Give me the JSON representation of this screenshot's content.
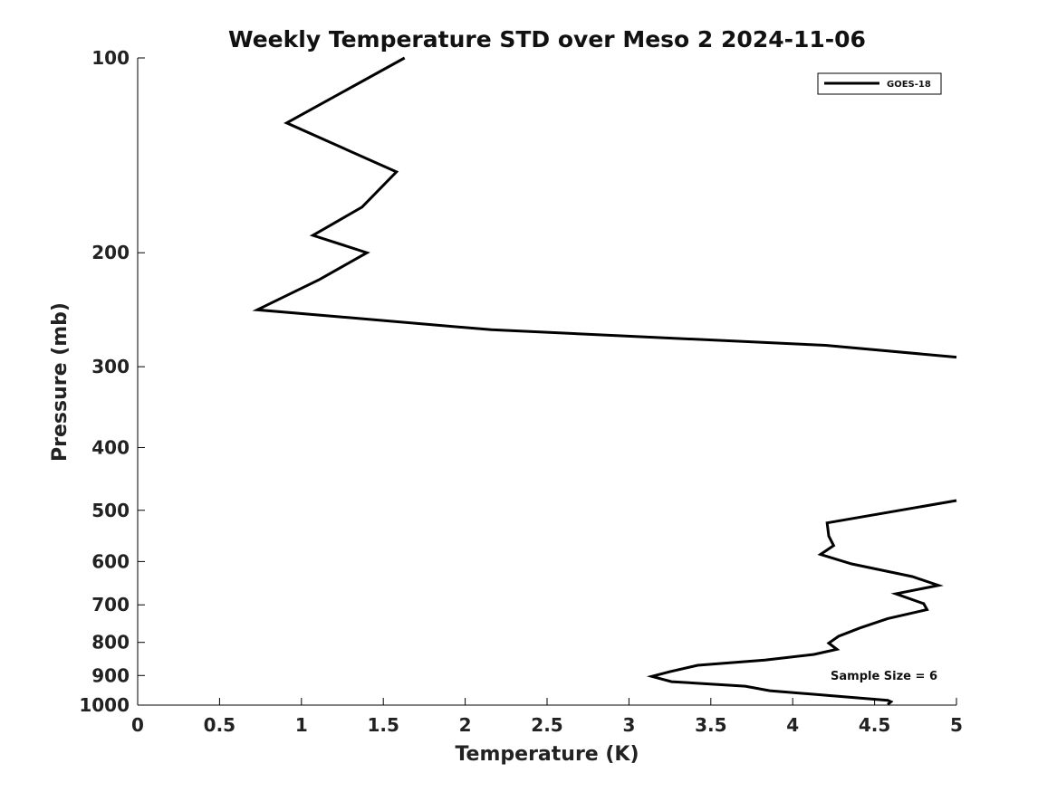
{
  "chart_data": {
    "type": "line",
    "title": "Weekly Temperature STD over Meso 2 2024-11-06",
    "xlabel": "Temperature (K)",
    "ylabel": "Pressure (mb)",
    "xlim": [
      0,
      5
    ],
    "ylim": [
      1000,
      100
    ],
    "yscale": "log",
    "xticks": [
      0,
      0.5,
      1,
      1.5,
      2,
      2.5,
      3,
      3.5,
      4,
      4.5,
      5
    ],
    "xtick_labels": [
      "0",
      "0.5",
      "1",
      "1.5",
      "2",
      "2.5",
      "3",
      "3.5",
      "4",
      "4.5",
      "5"
    ],
    "yticks": [
      100,
      200,
      300,
      400,
      500,
      600,
      700,
      800,
      900,
      1000
    ],
    "ytick_labels": [
      "100",
      "200",
      "300",
      "400",
      "500",
      "600",
      "700",
      "800",
      "900",
      "1000"
    ],
    "grid": false,
    "legend_position": "top-right",
    "annotation": "Sample Size = 6",
    "series": [
      {
        "name": "GOES-18",
        "color": "#000000",
        "segments": [
          [
            {
              "x": 1.63,
              "y": 100
            },
            {
              "x": 0.91,
              "y": 126
            },
            {
              "x": 1.58,
              "y": 150
            },
            {
              "x": 1.37,
              "y": 170
            },
            {
              "x": 1.07,
              "y": 188
            },
            {
              "x": 1.4,
              "y": 200
            },
            {
              "x": 1.11,
              "y": 220
            },
            {
              "x": 0.73,
              "y": 245
            },
            {
              "x": 2.16,
              "y": 263
            },
            {
              "x": 4.2,
              "y": 278
            },
            {
              "x": 5.0,
              "y": 290
            }
          ],
          [
            {
              "x": 5.0,
              "y": 483
            },
            {
              "x": 4.21,
              "y": 523
            },
            {
              "x": 4.22,
              "y": 548
            },
            {
              "x": 4.25,
              "y": 567
            },
            {
              "x": 4.17,
              "y": 585
            },
            {
              "x": 4.36,
              "y": 605
            },
            {
              "x": 4.73,
              "y": 633
            },
            {
              "x": 4.89,
              "y": 653
            },
            {
              "x": 4.63,
              "y": 673
            },
            {
              "x": 4.8,
              "y": 697
            },
            {
              "x": 4.82,
              "y": 712
            },
            {
              "x": 4.58,
              "y": 735
            },
            {
              "x": 4.41,
              "y": 760
            },
            {
              "x": 4.28,
              "y": 783
            },
            {
              "x": 4.22,
              "y": 802
            },
            {
              "x": 4.27,
              "y": 820
            },
            {
              "x": 4.13,
              "y": 835
            },
            {
              "x": 3.83,
              "y": 852
            },
            {
              "x": 3.42,
              "y": 868
            },
            {
              "x": 3.25,
              "y": 888
            },
            {
              "x": 3.14,
              "y": 903
            },
            {
              "x": 3.26,
              "y": 920
            },
            {
              "x": 3.71,
              "y": 935
            },
            {
              "x": 3.86,
              "y": 950
            },
            {
              "x": 4.58,
              "y": 983
            },
            {
              "x": 4.6,
              "y": 988
            },
            {
              "x": 4.58,
              "y": 998
            }
          ]
        ]
      }
    ]
  }
}
